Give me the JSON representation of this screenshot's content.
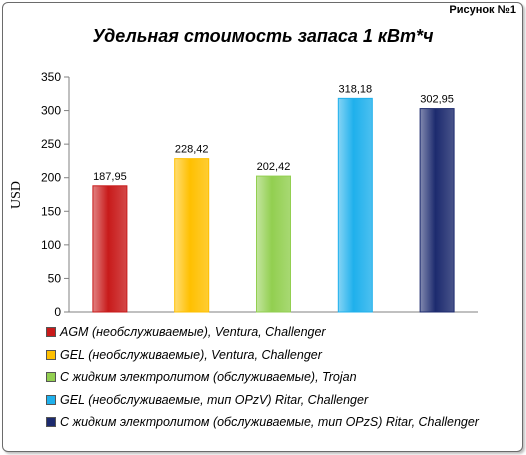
{
  "figure_label": "Рисунок  №1",
  "chart_data": {
    "type": "bar",
    "title": "Удельная стоимость запаса 1 кВт*ч",
    "ylabel": "USD",
    "xlabel": "",
    "ylim": [
      0,
      350
    ],
    "ytick_labels": [
      "0",
      "50",
      "100",
      "150",
      "200",
      "250",
      "300",
      "350"
    ],
    "grid": false,
    "legend_position": "bottom",
    "categories": [
      "AGM (необслуживаемые), Ventura, Challenger",
      "GEL (необслуживаемые), Ventura, Challenger",
      "С жидким электролитом (обслуживаемые), Trojan",
      "GEL (необслуживаемые, тип OPzV) Ritar, Challenger",
      "С жидким электролитом (обслуживаемые, тип OPzS) Ritar, Challenger"
    ],
    "values": [
      187.95,
      228.42,
      202.42,
      318.18,
      302.95
    ],
    "value_labels": [
      "187,95",
      "228,42",
      "202,42",
      "318,18",
      "302,95"
    ],
    "colors": [
      "#c81a1a",
      "#ffc000",
      "#92cf50",
      "#1fb0ec",
      "#1c2a6e"
    ]
  }
}
